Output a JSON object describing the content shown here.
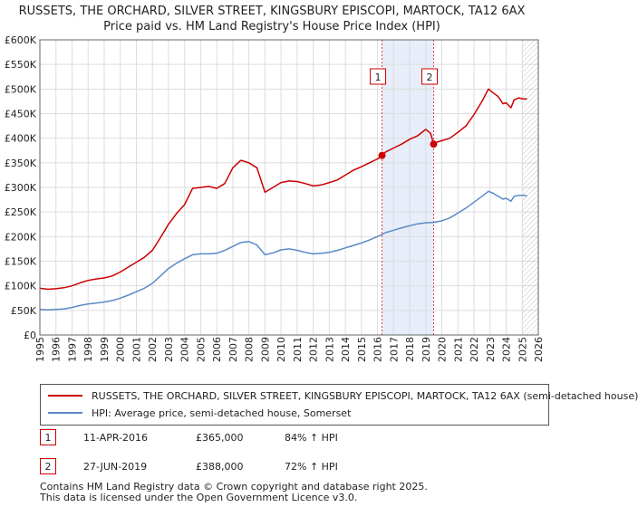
{
  "chart_data": {
    "type": "line",
    "title": "RUSSETS, THE ORCHARD, SILVER STREET, KINGSBURY EPISCOPI, MARTOCK, TA12 6AX",
    "subtitle": "Price paid vs. HM Land Registry's House Price Index (HPI)",
    "xlabel": "",
    "ylabel": "",
    "xlim": [
      1995,
      2026
    ],
    "ylim": [
      0,
      600000
    ],
    "x_ticks": [
      "1995",
      "1996",
      "1997",
      "1998",
      "1999",
      "2000",
      "2001",
      "2002",
      "2003",
      "2004",
      "2005",
      "2006",
      "2007",
      "2008",
      "2009",
      "2010",
      "2011",
      "2012",
      "2013",
      "2014",
      "2015",
      "2016",
      "2017",
      "2018",
      "2019",
      "2020",
      "2021",
      "2022",
      "2023",
      "2024",
      "2025",
      "2026"
    ],
    "y_ticks": [
      "£0",
      "£50K",
      "£100K",
      "£150K",
      "£200K",
      "£250K",
      "£300K",
      "£350K",
      "£400K",
      "£450K",
      "£500K",
      "£550K",
      "£600K"
    ],
    "grid": true,
    "colors": {
      "property": "#cc0000",
      "hpi": "#5b8ac6",
      "shade": "#dde6f7",
      "event_line": "#dd4444",
      "grid": "#dddddd"
    },
    "shaded_period": [
      2016.28,
      2019.49
    ],
    "future_hatch_from": 2025.0,
    "series": [
      {
        "name": "RUSSETS, THE ORCHARD, SILVER STREET, KINGSBURY EPISCOPI, MARTOCK, TA12 6AX (semi-detached house)",
        "color": "#cc0000",
        "x": [
          1995.0,
          1995.5,
          1996.0,
          1996.5,
          1997.0,
          1997.5,
          1998.0,
          1998.5,
          1999.0,
          1999.5,
          2000.0,
          2000.5,
          2001.0,
          2001.5,
          2002.0,
          2002.5,
          2003.0,
          2003.5,
          2004.0,
          2004.5,
          2005.0,
          2005.5,
          2006.0,
          2006.5,
          2007.0,
          2007.5,
          2008.0,
          2008.5,
          2009.0,
          2009.5,
          2010.0,
          2010.5,
          2011.0,
          2011.5,
          2012.0,
          2012.5,
          2013.0,
          2013.5,
          2014.0,
          2014.5,
          2015.0,
          2015.5,
          2016.0,
          2016.28,
          2016.5,
          2017.0,
          2017.5,
          2018.0,
          2018.5,
          2019.0,
          2019.3,
          2019.49,
          2019.7,
          2020.0,
          2020.5,
          2021.0,
          2021.5,
          2022.0,
          2022.5,
          2022.9,
          2023.2,
          2023.5,
          2023.8,
          2024.0,
          2024.3,
          2024.5,
          2024.8,
          2025.0,
          2025.3
        ],
        "values": [
          95000,
          93000,
          94000,
          96000,
          100000,
          106000,
          111000,
          114000,
          116000,
          120000,
          128000,
          138000,
          148000,
          158000,
          172000,
          198000,
          225000,
          247000,
          265000,
          298000,
          300000,
          302000,
          298000,
          308000,
          340000,
          355000,
          350000,
          340000,
          290000,
          300000,
          310000,
          313000,
          312000,
          308000,
          303000,
          305000,
          310000,
          315000,
          325000,
          335000,
          342000,
          350000,
          358000,
          365000,
          372000,
          380000,
          388000,
          398000,
          405000,
          418000,
          410000,
          388000,
          392000,
          395000,
          400000,
          412000,
          425000,
          448000,
          475000,
          500000,
          492000,
          485000,
          470000,
          472000,
          462000,
          478000,
          482000,
          480000,
          480000
        ]
      },
      {
        "name": "HPI: Average price, semi-detached house, Somerset",
        "color": "#5b8ac6",
        "x": [
          1995.0,
          1995.5,
          1996.0,
          1996.5,
          1997.0,
          1997.5,
          1998.0,
          1998.5,
          1999.0,
          1999.5,
          2000.0,
          2000.5,
          2001.0,
          2001.5,
          2002.0,
          2002.5,
          2003.0,
          2003.5,
          2004.0,
          2004.5,
          2005.0,
          2005.5,
          2006.0,
          2006.5,
          2007.0,
          2007.5,
          2008.0,
          2008.5,
          2009.0,
          2009.5,
          2010.0,
          2010.5,
          2011.0,
          2011.5,
          2012.0,
          2012.5,
          2013.0,
          2013.5,
          2014.0,
          2014.5,
          2015.0,
          2015.5,
          2016.0,
          2016.5,
          2017.0,
          2017.5,
          2018.0,
          2018.5,
          2019.0,
          2019.5,
          2020.0,
          2020.5,
          2021.0,
          2021.5,
          2022.0,
          2022.5,
          2022.9,
          2023.2,
          2023.5,
          2023.8,
          2024.0,
          2024.3,
          2024.5,
          2024.8,
          2025.0,
          2025.3
        ],
        "values": [
          52000,
          51000,
          52000,
          53000,
          56000,
          60000,
          63000,
          65000,
          67000,
          70000,
          75000,
          81000,
          88000,
          95000,
          105000,
          120000,
          135000,
          146000,
          155000,
          163000,
          165000,
          165000,
          166000,
          172000,
          180000,
          188000,
          190000,
          183000,
          163000,
          167000,
          173000,
          175000,
          172000,
          168000,
          165000,
          166000,
          168000,
          172000,
          177000,
          182000,
          187000,
          193000,
          200000,
          208000,
          213000,
          218000,
          222000,
          226000,
          228000,
          229000,
          232000,
          238000,
          248000,
          258000,
          270000,
          282000,
          292000,
          288000,
          282000,
          276000,
          278000,
          272000,
          282000,
          284000,
          284000,
          283000
        ]
      }
    ],
    "annotations": [
      {
        "label": "1",
        "x": 2016.28,
        "value": 365000
      },
      {
        "label": "2",
        "x": 2019.49,
        "value": 388000
      }
    ]
  },
  "legend": {
    "property": "RUSSETS, THE ORCHARD, SILVER STREET, KINGSBURY EPISCOPI, MARTOCK, TA12 6AX (semi-detached house)",
    "hpi": "HPI: Average price, semi-detached house, Somerset"
  },
  "transactions": [
    {
      "label": "1",
      "date": "11-APR-2016",
      "price": "£365,000",
      "hpi": "84% ↑ HPI"
    },
    {
      "label": "2",
      "date": "27-JUN-2019",
      "price": "£388,000",
      "hpi": "72% ↑ HPI"
    }
  ],
  "footer": {
    "line1": "Contains HM Land Registry data © Crown copyright and database right 2025.",
    "line2": "This data is licensed under the Open Government Licence v3.0."
  }
}
